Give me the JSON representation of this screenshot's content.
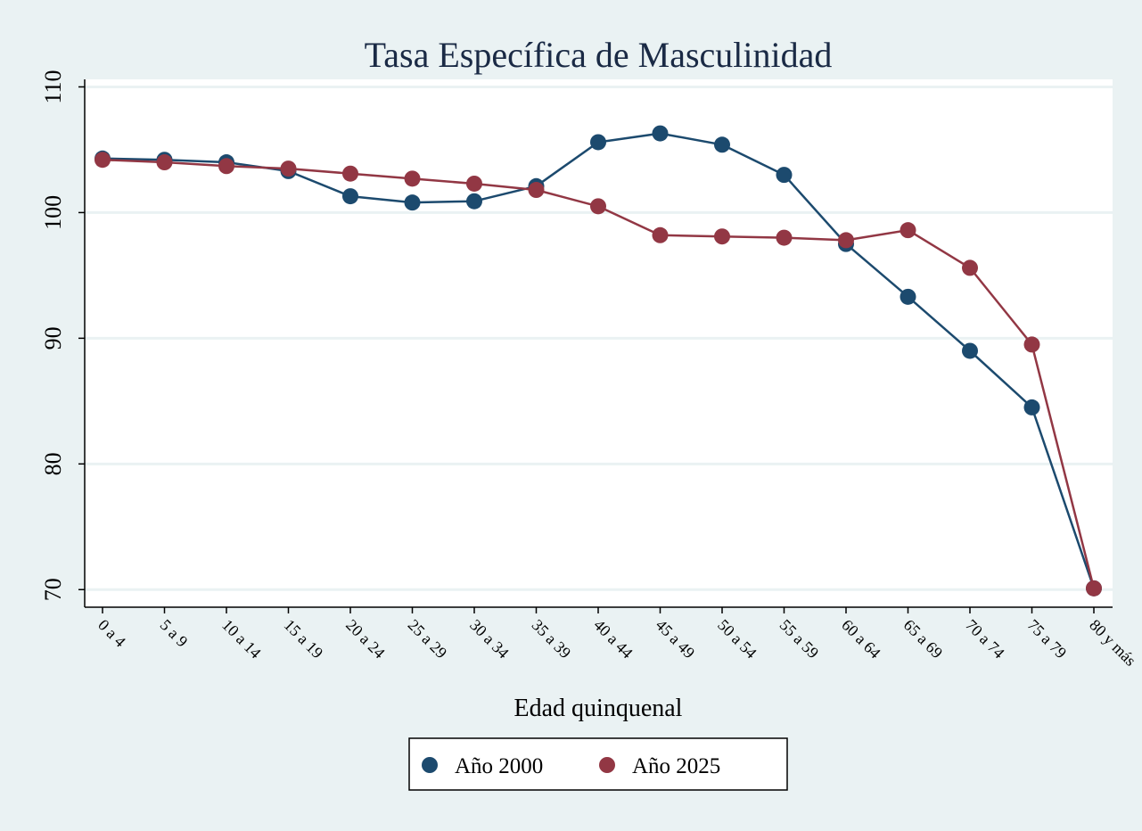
{
  "chart_data": {
    "type": "line",
    "title": "Tasa Específica de Masculinidad",
    "xlabel": "Edad quinquenal",
    "ylabel": "",
    "categories": [
      "0 a 4",
      "5 a 9",
      "10 a 14",
      "15 a 19",
      "20 a 24",
      "25 a 29",
      "30 a 34",
      "35 a 39",
      "40 a 44",
      "45 a 49",
      "50 a 54",
      "55 a 59",
      "60 a 64",
      "65 a 69",
      "70 a 74",
      "75 a 79",
      "80 y más"
    ],
    "ylim": [
      68.6,
      110.6
    ],
    "yticks": [
      70,
      80,
      90,
      100,
      110
    ],
    "grid": true,
    "legend_position": "bottom",
    "series": [
      {
        "name": "Año 2000",
        "color": "#1c4a6e",
        "values": [
          104.3,
          104.2,
          104.0,
          103.3,
          101.3,
          100.8,
          100.9,
          102.1,
          105.6,
          106.3,
          105.4,
          103.0,
          97.5,
          93.3,
          89.0,
          84.5,
          70.1
        ]
      },
      {
        "name": "Año 2025",
        "color": "#923744",
        "values": [
          104.2,
          104.0,
          103.7,
          103.5,
          103.1,
          102.7,
          102.3,
          101.8,
          100.5,
          98.2,
          98.1,
          98.0,
          97.8,
          98.6,
          95.6,
          89.5,
          70.1
        ]
      }
    ],
    "colors": {
      "background": "#eaf2f3",
      "plot_background": "#ffffff",
      "gridline": "#eaf2f3",
      "title": "#1a2a45"
    }
  }
}
